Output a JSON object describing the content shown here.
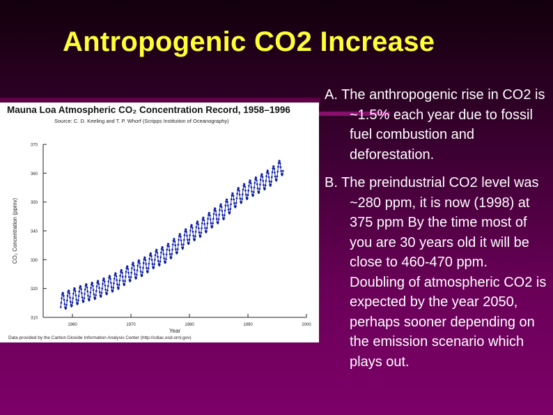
{
  "slide": {
    "title": "Antropogenic CO2 Increase",
    "points": [
      "A. The anthropogenic rise in CO2 is ~1.5% each year due to fossil fuel combustion and deforestation.",
      "B. The preindustrial CO2 level was ~280 ppm, it is now (1998) at 375 ppm By the time most of you are 30 years old it will be close to 460-470 ppm."
    ],
    "continuation": "Doubling of atmospheric CO2 is expected by the year 2050, perhaps sooner depending on the emission scenario which plays out."
  },
  "figure": {
    "title": "Mauna Loa Atmospheric CO₂ Concentration Record, 1958–1996",
    "source": "Source: C. D. Keeling and T. P. Whorf (Scripps Institution of Oceanography)",
    "footer": "Data provided by the Carbon Dioxide Information Analysis Center (http://cdiac.esd.ornl.gov)",
    "colors": {
      "line": "#1a2db5",
      "point": "#0a1aa0",
      "axis": "#222222"
    }
  },
  "chart_data": {
    "type": "line",
    "title": "Mauna Loa Atmospheric CO₂ Concentration Record, 1958–1996",
    "xlabel": "Year",
    "ylabel": "CO₂ Concentration (ppmv)",
    "xlim": [
      1955,
      2000
    ],
    "ylim": [
      310,
      370
    ],
    "x_ticks": [
      "1960",
      "1970",
      "1980",
      "1990",
      "2000"
    ],
    "x_tick_values": [
      1960,
      1970,
      1980,
      1990,
      2000
    ],
    "y_ticks": [
      "310",
      "320",
      "330",
      "340",
      "350",
      "360",
      "370"
    ],
    "y_tick_values": [
      310,
      320,
      330,
      340,
      350,
      360,
      370
    ],
    "grid": false,
    "series": [
      {
        "name": "",
        "x": [
          1958,
          1960,
          1962,
          1964,
          1966,
          1968,
          1970,
          1972,
          1974,
          1976,
          1978,
          1980,
          1982,
          1984,
          1986,
          1988,
          1990,
          1992,
          1994,
          1996
        ],
        "values": [
          315.3,
          316.9,
          318.4,
          319.4,
          321.1,
          323.0,
          325.7,
          327.4,
          330.2,
          332.0,
          335.4,
          338.7,
          341.1,
          344.4,
          347.2,
          351.5,
          354.2,
          356.3,
          358.8,
          362.6
        ],
        "seasonal_amplitude": 3
      }
    ]
  }
}
